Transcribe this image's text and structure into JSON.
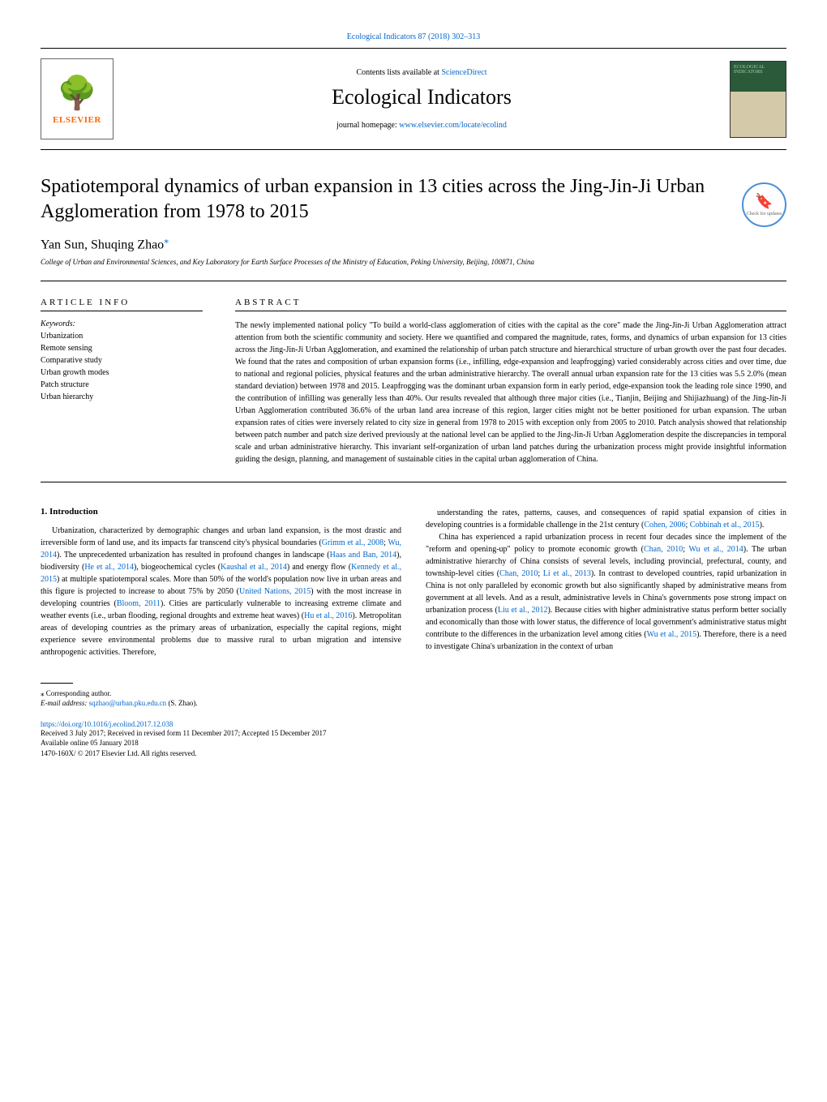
{
  "top_link": "Ecological Indicators 87 (2018) 302–313",
  "header": {
    "contents_prefix": "Contents lists available at ",
    "contents_link": "ScienceDirect",
    "journal_name": "Ecological Indicators",
    "homepage_prefix": "journal homepage: ",
    "homepage_link": "www.elsevier.com/locate/ecolind",
    "elsevier": "ELSEVIER",
    "cover_label": "ECOLOGICAL INDICATORS"
  },
  "updates_badge": "Check for updates",
  "article": {
    "title": "Spatiotemporal dynamics of urban expansion in 13 cities across the Jing-Jin-Ji Urban Agglomeration from 1978 to 2015",
    "authors": "Yan Sun, Shuqing Zhao",
    "affiliation": "College of Urban and Environmental Sciences, and Key Laboratory for Earth Surface Processes of the Ministry of Education, Peking University, Beijing, 100871, China"
  },
  "info": {
    "heading_left": "ARTICLE INFO",
    "heading_right": "ABSTRACT",
    "keywords_label": "Keywords:",
    "keywords": [
      "Urbanization",
      "Remote sensing",
      "Comparative study",
      "Urban growth modes",
      "Patch structure",
      "Urban hierarchy"
    ],
    "abstract": "The newly implemented national policy \"To build a world-class agglomeration of cities with the capital as the core\" made the Jing-Jin-Ji Urban Agglomeration attract attention from both the scientific community and society. Here we quantified and compared the magnitude, rates, forms, and dynamics of urban expansion for 13 cities across the Jing-Jin-Ji Urban Agglomeration, and examined the relationship of urban patch structure and hierarchical structure of urban growth over the past four decades. We found that the rates and composition of urban expansion forms (i.e., infilling, edge-expansion and leapfrogging) varied considerably across cities and over time, due to national and regional policies, physical features and the urban administrative hierarchy. The overall annual urban expansion rate for the 13 cities was 5.5    2.0% (mean    standard deviation) between 1978 and 2015. Leapfrogging was the dominant urban expansion form in early period, edge-expansion took the leading role since 1990, and the contribution of infilling was generally less than 40%. Our results revealed that although three major cities (i.e., Tianjin, Beijing and Shijiazhuang) of the Jing-Jin-Ji Urban Agglomeration contributed 36.6% of the urban land area increase of this region, larger cities might not be better positioned for urban expansion. The urban expansion rates of cities were inversely related to city size in general from 1978 to 2015 with exception only from 2005 to 2010. Patch analysis showed that relationship between patch number and patch size derived previously at the national level can be applied to the Jing-Jin-Ji Urban Agglomeration despite the discrepancies in temporal scale and urban administrative hierarchy. This invariant self-organization of urban land patches during the urbanization process might provide insightful information guiding the design, planning, and management of sustainable cities in the capital urban agglomeration of China."
  },
  "body": {
    "heading": "1. Introduction",
    "col1": "Urbanization, characterized by demographic changes and urban land expansion, is the most drastic and irreversible form of land use, and its impacts far transcend city's physical boundaries (<a>Grimm et al., 2008</a>; <a>Wu, 2014</a>). The unprecedented urbanization has resulted in profound changes in landscape (<a>Haas and Ban, 2014</a>), biodiversity (<a>He et al., 2014</a>), biogeochemical cycles (<a>Kaushal et al., 2014</a>) and energy flow (<a>Kennedy et al., 2015</a>) at multiple spatiotemporal scales. More than 50% of the world's population now live in urban areas and this figure is projected to increase to about 75% by 2050 (<a>United Nations, 2015</a>) with the most increase in developing countries (<a>Bloom, 2011</a>). Cities are particularly vulnerable to increasing extreme climate and weather events (i.e., urban flooding, regional droughts and extreme heat waves) (<a>Hu et al., 2016</a>). Metropolitan areas of developing countries as the primary areas of urbanization, especially the capital regions, might experience severe environmental problems due to massive rural to urban migration and intensive anthropogenic activities. Therefore,",
    "col2": "understanding the rates, patterns, causes, and consequences of rapid spatial expansion of cities in developing countries is a formidable challenge in the 21st century (<a>Cohen, 2006</a>; <a>Cobbinah et al., 2015</a>).<br>&nbsp;&nbsp;&nbsp;&nbsp;China has experienced a rapid urbanization process in recent four decades since the implement of the \"reform and opening-up\" policy to promote economic growth (<a>Chan, 2010</a>; <a>Wu et al., 2014</a>). The urban administrative hierarchy of China consists of several levels, including provincial, prefectural, county, and township-level cities (<a>Chan, 2010</a>; <a>Li et al., 2013</a>). In contrast to developed countries, rapid urbanization in China is not only paralleled by economic growth but also significantly shaped by administrative means from government at all levels. And as a result, administrative levels in China's governments pose strong impact on urbanization process (<a>Liu et al., 2012</a>). Because cities with higher administrative status perform better socially and economically than those with lower status, the difference of local government's administrative status might contribute to the differences in the urbanization level among cities (<a>Wu et al., 2015</a>). Therefore, there is a need to investigate China's urbanization in the context of urban"
  },
  "footer": {
    "corr_label": "⁎ Corresponding author.",
    "email_label": "E-mail address: ",
    "email": "sqzhao@urban.pku.edu.cn",
    "email_suffix": " (S. Zhao).",
    "doi": "https://doi.org/10.1016/j.ecolind.2017.12.038",
    "received": "Received 3 July 2017; Received in revised form 11 December 2017; Accepted 15 December 2017",
    "available": "Available online 05 January 2018",
    "copyright": "1470-160X/ © 2017 Elsevier Ltd. All rights reserved."
  }
}
